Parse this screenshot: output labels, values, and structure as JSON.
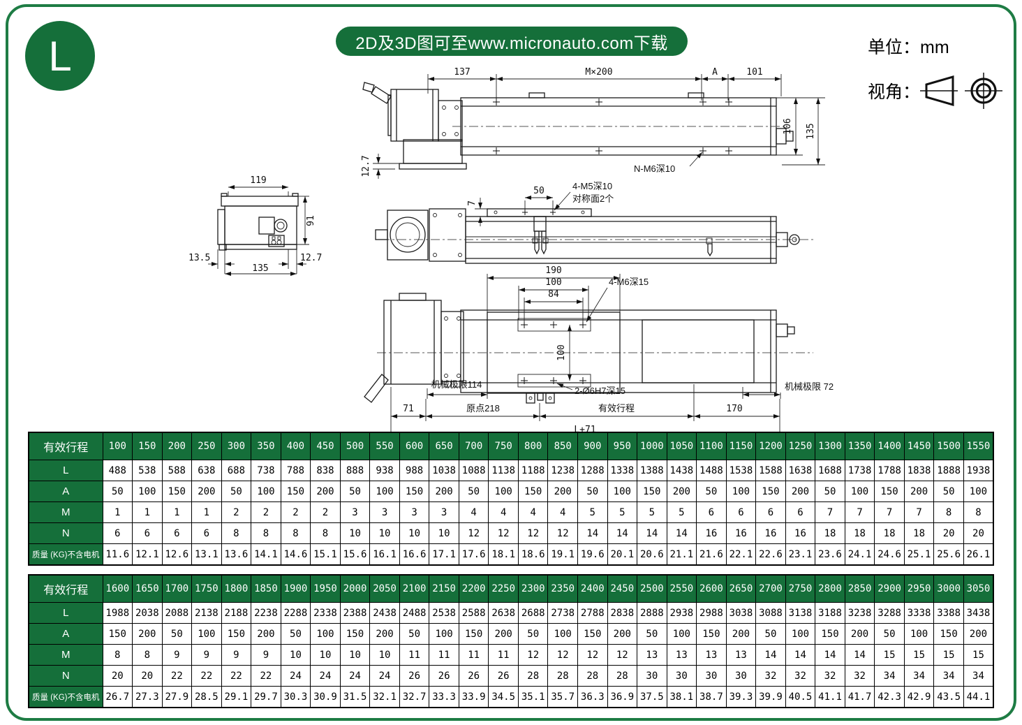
{
  "colors": {
    "green": "#156f3a",
    "frame": "#1e7c44"
  },
  "page": {
    "badge": "L",
    "banner": "2D及3D图可至www.micronauto.com下载",
    "unit_label": "单位：mm",
    "view_label": "视角："
  },
  "annotations": {
    "top_view": {
      "d137": "137",
      "m200": "M×200",
      "a": "A",
      "d101": "101",
      "h106": "106",
      "h135": "135",
      "d127": "12.7",
      "callout": "N-M6深10"
    },
    "side_view": {
      "w119": "119",
      "h91": "91",
      "off13": "13.5",
      "w135": "135",
      "off12": "12.7"
    },
    "front_view": {
      "d7": "7",
      "d50": "50",
      "callout1": "4-M5深10",
      "callout2": "对称面2个"
    },
    "plan_view": {
      "w190": "190",
      "w100": "100",
      "w84": "84",
      "callout_m6": "4-M6深15",
      "h100": "100",
      "limit_left": "机械极限114",
      "callout_pin": "2-Ø6H7深15",
      "limit_right": "机械极限 72",
      "d71": "71",
      "origin": "原点218",
      "stroke": "有效行程",
      "d170": "170",
      "total": "L+71"
    }
  },
  "tables": [
    {
      "header_label": "有效行程",
      "strokes": [
        100,
        150,
        200,
        250,
        300,
        350,
        400,
        450,
        500,
        550,
        600,
        650,
        700,
        750,
        800,
        850,
        900,
        950,
        1000,
        1050,
        1100,
        1150,
        1200,
        1250,
        1300,
        1350,
        1400,
        1450,
        1500,
        1550
      ],
      "rows": [
        {
          "label": "L",
          "values": [
            488,
            538,
            588,
            638,
            688,
            738,
            788,
            838,
            888,
            938,
            988,
            1038,
            1088,
            1138,
            1188,
            1238,
            1288,
            1338,
            1388,
            1438,
            1488,
            1538,
            1588,
            1638,
            1688,
            1738,
            1788,
            1838,
            1888,
            1938
          ]
        },
        {
          "label": "A",
          "values": [
            50,
            100,
            150,
            200,
            50,
            100,
            150,
            200,
            50,
            100,
            150,
            200,
            50,
            100,
            150,
            200,
            50,
            100,
            150,
            200,
            50,
            100,
            150,
            200,
            50,
            100,
            150,
            200,
            50,
            100
          ]
        },
        {
          "label": "M",
          "values": [
            1,
            1,
            1,
            1,
            2,
            2,
            2,
            2,
            3,
            3,
            3,
            3,
            4,
            4,
            4,
            4,
            5,
            5,
            5,
            5,
            6,
            6,
            6,
            6,
            7,
            7,
            7,
            7,
            8,
            8
          ]
        },
        {
          "label": "N",
          "values": [
            6,
            6,
            6,
            6,
            8,
            8,
            8,
            8,
            10,
            10,
            10,
            10,
            12,
            12,
            12,
            12,
            14,
            14,
            14,
            14,
            16,
            16,
            16,
            16,
            18,
            18,
            18,
            18,
            20,
            20
          ]
        },
        {
          "label": "质量 (KG)不含电机",
          "values": [
            11.6,
            12.1,
            12.6,
            13.1,
            13.6,
            14.1,
            14.6,
            15.1,
            15.6,
            16.1,
            16.6,
            17.1,
            17.6,
            18.1,
            18.6,
            19.1,
            19.6,
            20.1,
            20.6,
            21.1,
            21.6,
            22.1,
            22.6,
            23.1,
            23.6,
            24.1,
            24.6,
            25.1,
            25.6,
            26.1
          ]
        }
      ]
    },
    {
      "header_label": "有效行程",
      "strokes": [
        1600,
        1650,
        1700,
        1750,
        1800,
        1850,
        1900,
        1950,
        2000,
        2050,
        2100,
        2150,
        2200,
        2250,
        2300,
        2350,
        2400,
        2450,
        2500,
        2550,
        2600,
        2650,
        2700,
        2750,
        2800,
        2850,
        2900,
        2950,
        3000,
        3050
      ],
      "rows": [
        {
          "label": "L",
          "values": [
            1988,
            2038,
            2088,
            2138,
            2188,
            2238,
            2288,
            2338,
            2388,
            2438,
            2488,
            2538,
            2588,
            2638,
            2688,
            2738,
            2788,
            2838,
            2888,
            2938,
            2988,
            3038,
            3088,
            3138,
            3188,
            3238,
            3288,
            3338,
            3388,
            3438
          ]
        },
        {
          "label": "A",
          "values": [
            150,
            200,
            50,
            100,
            150,
            200,
            50,
            100,
            150,
            200,
            50,
            100,
            150,
            200,
            50,
            100,
            150,
            200,
            50,
            100,
            150,
            200,
            50,
            100,
            150,
            200,
            50,
            100,
            150,
            200
          ]
        },
        {
          "label": "M",
          "values": [
            8,
            8,
            9,
            9,
            9,
            9,
            10,
            10,
            10,
            10,
            11,
            11,
            11,
            11,
            12,
            12,
            12,
            12,
            13,
            13,
            13,
            13,
            14,
            14,
            14,
            14,
            15,
            15,
            15,
            15
          ]
        },
        {
          "label": "N",
          "values": [
            20,
            20,
            22,
            22,
            22,
            22,
            24,
            24,
            24,
            24,
            26,
            26,
            26,
            26,
            28,
            28,
            28,
            28,
            30,
            30,
            30,
            30,
            32,
            32,
            32,
            32,
            34,
            34,
            34,
            34
          ]
        },
        {
          "label": "质量 (KG)不含电机",
          "values": [
            26.7,
            27.3,
            27.9,
            28.5,
            29.1,
            29.7,
            30.3,
            30.9,
            31.5,
            32.1,
            32.7,
            33.3,
            33.9,
            34.5,
            35.1,
            35.7,
            36.3,
            36.9,
            37.5,
            38.1,
            38.7,
            39.3,
            39.9,
            40.5,
            41.1,
            41.7,
            42.3,
            42.9,
            43.5,
            44.1
          ]
        }
      ]
    }
  ]
}
